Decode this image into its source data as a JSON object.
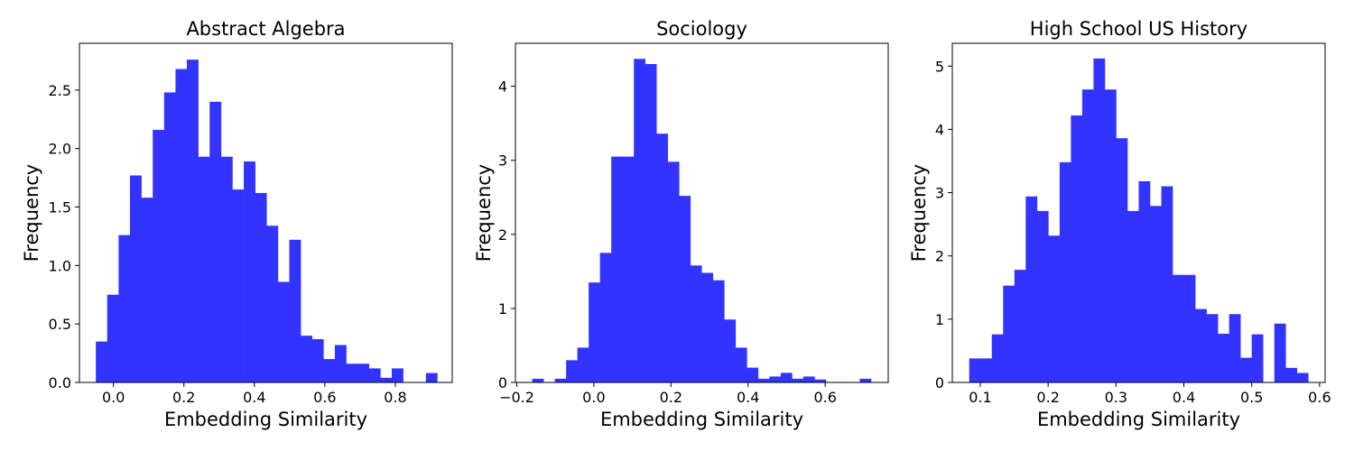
{
  "chart_data": [
    {
      "type": "bar",
      "title": "Abstract Algebra",
      "xlabel": "Embedding Similarity",
      "ylabel": "Frequency",
      "xlim": [
        -0.0965,
        0.9615
      ],
      "ylim": [
        0,
        2.9
      ],
      "xticks": [
        0.0,
        0.2,
        0.4,
        0.6,
        0.8
      ],
      "xtick_labels": [
        "0.0",
        "0.2",
        "0.4",
        "0.6",
        "0.8"
      ],
      "yticks": [
        0.0,
        0.5,
        1.0,
        1.5,
        2.0,
        2.5
      ],
      "ytick_labels": [
        "0.0",
        "0.5",
        "1.0",
        "1.5",
        "2.0",
        "2.5"
      ],
      "bin_start": -0.05,
      "bin_width": 0.0323,
      "color": "#3333ff",
      "values": [
        0.35,
        0.75,
        1.26,
        1.77,
        1.58,
        2.16,
        2.48,
        2.68,
        2.76,
        1.93,
        2.4,
        1.93,
        1.65,
        1.89,
        1.62,
        1.34,
        0.86,
        1.22,
        0.4,
        0.37,
        0.2,
        0.32,
        0.16,
        0.16,
        0.12,
        0.04,
        0.12,
        0.0,
        0.0,
        0.08
      ]
    },
    {
      "type": "bar",
      "title": "Sociology",
      "xlabel": "Embedding Similarity",
      "ylabel": "Frequency",
      "xlim": [
        -0.2035,
        0.7635
      ],
      "ylim": [
        0,
        4.58
      ],
      "xticks": [
        -0.2,
        0.0,
        0.2,
        0.4,
        0.6
      ],
      "xtick_labels": [
        "−0.2",
        "0.0",
        "0.2",
        "0.4",
        "0.6"
      ],
      "yticks": [
        0,
        1,
        2,
        3,
        4
      ],
      "ytick_labels": [
        "0",
        "1",
        "2",
        "3",
        "4"
      ],
      "bin_start": -0.16,
      "bin_width": 0.0293,
      "color": "#3333ff",
      "values": [
        0.05,
        0.0,
        0.05,
        0.3,
        0.47,
        1.35,
        1.75,
        3.05,
        3.05,
        4.37,
        4.3,
        3.36,
        2.98,
        2.52,
        1.58,
        1.48,
        1.38,
        0.85,
        0.47,
        0.2,
        0.05,
        0.08,
        0.13,
        0.05,
        0.08,
        0.04,
        0.0,
        0.0,
        0.0,
        0.05
      ]
    },
    {
      "type": "bar",
      "title": "High School US History",
      "xlabel": "Embedding Similarity",
      "ylabel": "Frequency",
      "xlim": [
        0.0588,
        0.6081
      ],
      "ylim": [
        0,
        5.36
      ],
      "xticks": [
        0.1,
        0.2,
        0.3,
        0.4,
        0.5,
        0.6
      ],
      "xtick_labels": [
        "0.1",
        "0.2",
        "0.3",
        "0.4",
        "0.5",
        "0.6"
      ],
      "yticks": [
        0,
        1,
        2,
        3,
        4,
        5
      ],
      "ytick_labels": [
        "0",
        "1",
        "2",
        "3",
        "4",
        "5"
      ],
      "bin_start": 0.0837,
      "bin_width": 0.01665,
      "color": "#3333ff",
      "values": [
        0.38,
        0.38,
        0.76,
        1.53,
        1.78,
        2.94,
        2.71,
        2.32,
        3.48,
        4.22,
        4.63,
        5.12,
        4.63,
        3.86,
        2.71,
        3.18,
        2.79,
        3.1,
        1.7,
        1.7,
        1.16,
        1.08,
        0.77,
        1.08,
        0.39,
        0.76,
        0.0,
        0.93,
        0.23,
        0.15
      ]
    }
  ]
}
